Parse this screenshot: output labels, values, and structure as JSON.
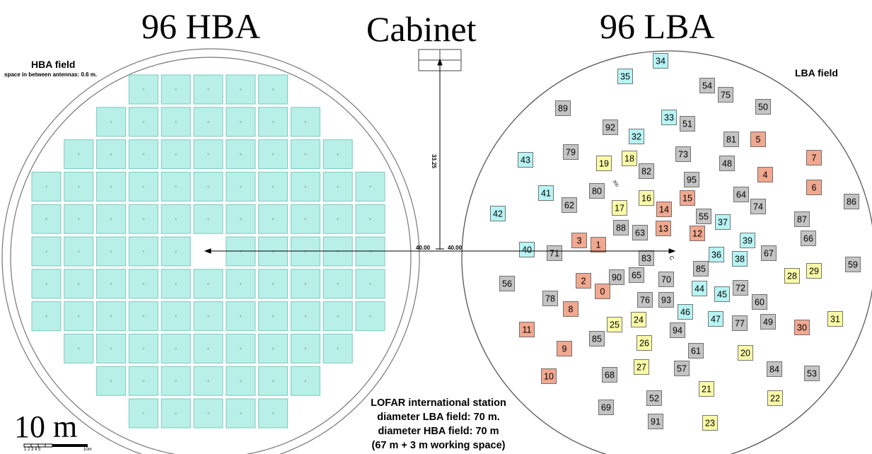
{
  "titles": {
    "hba": "96 HBA",
    "cabinet": "Cabinet",
    "lba": "96 LBA"
  },
  "hba_field": {
    "title": "HBA field",
    "subtitle": "space in between antennas: 0.6 m.",
    "tile_color": "#b8f0e8",
    "tile_border": "#7ec9bd",
    "rows": [
      {
        "start": 3,
        "count": 5
      },
      {
        "start": 2,
        "count": 7
      },
      {
        "start": 1,
        "count": 9
      },
      {
        "start": 0,
        "count": 11
      },
      {
        "start": 0,
        "count": 11
      },
      {
        "start": 0,
        "count": 11,
        "gap_start": 5,
        "gap_count": 1
      },
      {
        "start": 0,
        "count": 11
      },
      {
        "start": 0,
        "count": 11
      },
      {
        "start": 1,
        "count": 9
      },
      {
        "start": 2,
        "count": 7
      },
      {
        "start": 3,
        "count": 5
      }
    ]
  },
  "lba_field": {
    "title": "LBA field",
    "colors": {
      "gray": "#c4c4c4",
      "cyan": "#b8f4f4",
      "yellow": "#fafaa8",
      "orange": "#f0a890"
    },
    "antennas": [
      {
        "label": "34",
        "c": "cyan"
      },
      {
        "label": "35",
        "c": "cyan"
      },
      {
        "label": "54",
        "c": "gray"
      },
      {
        "label": "75",
        "c": "gray"
      },
      {
        "label": "50",
        "c": "gray"
      },
      {
        "label": "89",
        "c": "gray"
      },
      {
        "label": "33",
        "c": "cyan"
      },
      {
        "label": "92",
        "c": "gray"
      },
      {
        "label": "51",
        "c": "gray"
      },
      {
        "label": "32",
        "c": "cyan"
      },
      {
        "label": "81",
        "c": "gray"
      },
      {
        "label": "5",
        "c": "orange"
      },
      {
        "label": "79",
        "c": "gray"
      },
      {
        "label": "18",
        "c": "yellow"
      },
      {
        "label": "73",
        "c": "gray"
      },
      {
        "label": "43",
        "c": "cyan"
      },
      {
        "label": "19",
        "c": "yellow"
      },
      {
        "label": "82",
        "c": "gray"
      },
      {
        "label": "48",
        "c": "gray"
      },
      {
        "label": "7",
        "c": "orange"
      },
      {
        "label": "95",
        "c": "gray"
      },
      {
        "label": "4",
        "c": "orange"
      },
      {
        "label": "80",
        "c": "gray"
      },
      {
        "label": "6",
        "c": "orange"
      },
      {
        "label": "41",
        "c": "cyan"
      },
      {
        "label": "16",
        "c": "yellow"
      },
      {
        "label": "15",
        "c": "orange"
      },
      {
        "label": "64",
        "c": "gray"
      },
      {
        "label": "62",
        "c": "gray"
      },
      {
        "label": "17",
        "c": "yellow"
      },
      {
        "label": "14",
        "c": "orange"
      },
      {
        "label": "74",
        "c": "gray"
      },
      {
        "label": "86",
        "c": "gray"
      },
      {
        "label": "42",
        "c": "cyan"
      },
      {
        "label": "55",
        "c": "gray"
      },
      {
        "label": "87",
        "c": "gray"
      },
      {
        "label": "88",
        "c": "gray"
      },
      {
        "label": "37",
        "c": "cyan"
      },
      {
        "label": "63",
        "c": "gray"
      },
      {
        "label": "13",
        "c": "orange"
      },
      {
        "label": "12",
        "c": "orange"
      },
      {
        "label": "66",
        "c": "gray"
      },
      {
        "label": "3",
        "c": "orange"
      },
      {
        "label": "1",
        "c": "orange"
      },
      {
        "label": "39",
        "c": "cyan"
      },
      {
        "label": "40",
        "c": "cyan"
      },
      {
        "label": "71",
        "c": "gray"
      },
      {
        "label": "36",
        "c": "cyan"
      },
      {
        "label": "83",
        "c": "gray"
      },
      {
        "label": "67",
        "c": "gray"
      },
      {
        "label": "38",
        "c": "cyan"
      },
      {
        "label": "59",
        "c": "gray"
      },
      {
        "label": "85",
        "c": "gray"
      },
      {
        "label": "29",
        "c": "yellow"
      },
      {
        "label": "28",
        "c": "yellow"
      },
      {
        "label": "56",
        "c": "gray"
      },
      {
        "label": "90",
        "c": "gray"
      },
      {
        "label": "65",
        "c": "gray"
      },
      {
        "label": "70",
        "c": "gray"
      },
      {
        "label": "2",
        "c": "orange"
      },
      {
        "label": "72",
        "c": "gray"
      },
      {
        "label": "0",
        "c": "orange"
      },
      {
        "label": "44",
        "c": "cyan"
      },
      {
        "label": "45",
        "c": "cyan"
      },
      {
        "label": "78",
        "c": "gray"
      },
      {
        "label": "76",
        "c": "gray"
      },
      {
        "label": "93",
        "c": "gray"
      },
      {
        "label": "60",
        "c": "gray"
      },
      {
        "label": "8",
        "c": "orange"
      },
      {
        "label": "46",
        "c": "cyan"
      },
      {
        "label": "24",
        "c": "yellow"
      },
      {
        "label": "47",
        "c": "cyan"
      },
      {
        "label": "31",
        "c": "yellow"
      },
      {
        "label": "25",
        "c": "yellow"
      },
      {
        "label": "77",
        "c": "gray"
      },
      {
        "label": "49",
        "c": "gray"
      },
      {
        "label": "11",
        "c": "orange"
      },
      {
        "label": "30",
        "c": "orange"
      },
      {
        "label": "94",
        "c": "gray"
      },
      {
        "label": "85",
        "c": "gray"
      },
      {
        "label": "26",
        "c": "yellow"
      },
      {
        "label": "9",
        "c": "orange"
      },
      {
        "label": "61",
        "c": "gray"
      },
      {
        "label": "20",
        "c": "yellow"
      },
      {
        "label": "27",
        "c": "yellow"
      },
      {
        "label": "57",
        "c": "gray"
      },
      {
        "label": "84",
        "c": "gray"
      },
      {
        "label": "53",
        "c": "gray"
      },
      {
        "label": "10",
        "c": "orange"
      },
      {
        "label": "68",
        "c": "gray"
      },
      {
        "label": "21",
        "c": "yellow"
      },
      {
        "label": "52",
        "c": "gray"
      },
      {
        "label": "22",
        "c": "yellow"
      },
      {
        "label": "69",
        "c": "gray"
      },
      {
        "label": "91",
        "c": "gray"
      },
      {
        "label": "23",
        "c": "yellow"
      }
    ]
  },
  "dimensions": {
    "left_distance": "40.00",
    "right_distance": "40.00",
    "vertical_distance": "33.25",
    "small_label": "300",
    "center_mark": "C"
  },
  "caption": {
    "line1": "LOFAR international station",
    "line2": "diameter LBA field: 70 m.",
    "line3": "diameter HBA field: 70 m",
    "line4": "(67 m + 3 m working space)"
  },
  "scale": {
    "label": "10 m",
    "ticks": "1  2  3  4  5",
    "end_label": "10m"
  }
}
